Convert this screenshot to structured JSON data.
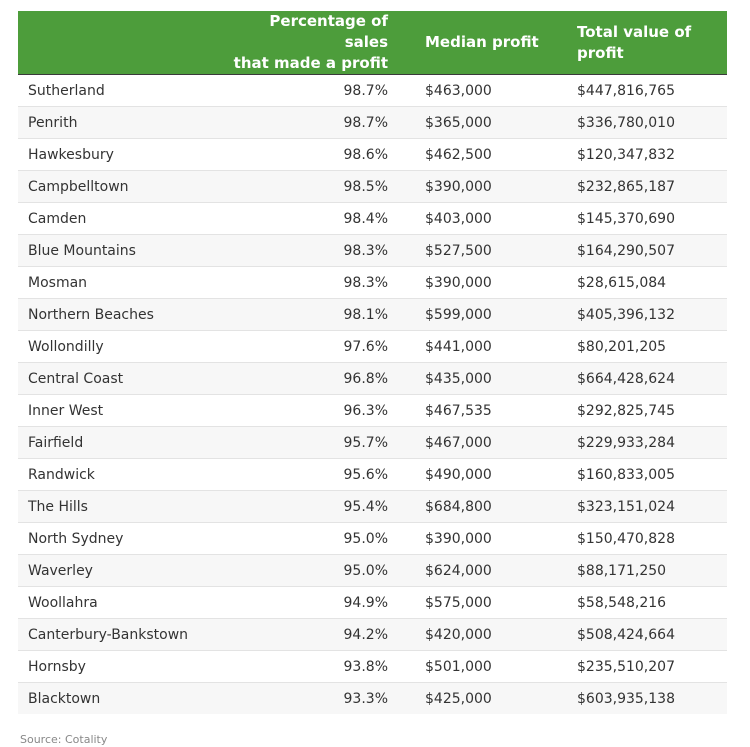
{
  "table": {
    "headers": {
      "region": "",
      "pct_line1": "Percentage of sales",
      "pct_line2": "that made a profit",
      "median": "Median profit",
      "total": "Total value of profit"
    },
    "rows": [
      {
        "region": "Sutherland",
        "pct": "98.7%",
        "median": "$463,000",
        "total": "$447,816,765"
      },
      {
        "region": "Penrith",
        "pct": "98.7%",
        "median": "$365,000",
        "total": "$336,780,010"
      },
      {
        "region": "Hawkesbury",
        "pct": "98.6%",
        "median": "$462,500",
        "total": "$120,347,832"
      },
      {
        "region": "Campbelltown",
        "pct": "98.5%",
        "median": "$390,000",
        "total": "$232,865,187"
      },
      {
        "region": "Camden",
        "pct": "98.4%",
        "median": "$403,000",
        "total": "$145,370,690"
      },
      {
        "region": "Blue Mountains",
        "pct": "98.3%",
        "median": "$527,500",
        "total": "$164,290,507"
      },
      {
        "region": "Mosman",
        "pct": "98.3%",
        "median": "$390,000",
        "total": "$28,615,084"
      },
      {
        "region": "Northern Beaches",
        "pct": "98.1%",
        "median": "$599,000",
        "total": "$405,396,132"
      },
      {
        "region": "Wollondilly",
        "pct": "97.6%",
        "median": "$441,000",
        "total": "$80,201,205"
      },
      {
        "region": "Central Coast",
        "pct": "96.8%",
        "median": "$435,000",
        "total": "$664,428,624"
      },
      {
        "region": "Inner West",
        "pct": "96.3%",
        "median": "$467,535",
        "total": "$292,825,745"
      },
      {
        "region": "Fairfield",
        "pct": "95.7%",
        "median": "$467,000",
        "total": "$229,933,284"
      },
      {
        "region": "Randwick",
        "pct": "95.6%",
        "median": "$490,000",
        "total": "$160,833,005"
      },
      {
        "region": "The Hills",
        "pct": "95.4%",
        "median": "$684,800",
        "total": "$323,151,024"
      },
      {
        "region": "North Sydney",
        "pct": "95.0%",
        "median": "$390,000",
        "total": "$150,470,828"
      },
      {
        "region": "Waverley",
        "pct": "95.0%",
        "median": "$624,000",
        "total": "$88,171,250"
      },
      {
        "region": "Woollahra",
        "pct": "94.9%",
        "median": "$575,000",
        "total": "$58,548,216"
      },
      {
        "region": "Canterbury-Bankstown",
        "pct": "94.2%",
        "median": "$420,000",
        "total": "$508,424,664"
      },
      {
        "region": "Hornsby",
        "pct": "93.8%",
        "median": "$501,000",
        "total": "$235,510,207"
      },
      {
        "region": "Blacktown",
        "pct": "93.3%",
        "median": "$425,000",
        "total": "$603,935,138"
      }
    ]
  },
  "source": "Source: Cotality",
  "colors": {
    "header_bg": "#4d9d3b",
    "header_text": "#ffffff",
    "row_alt": "#f7f7f7"
  }
}
